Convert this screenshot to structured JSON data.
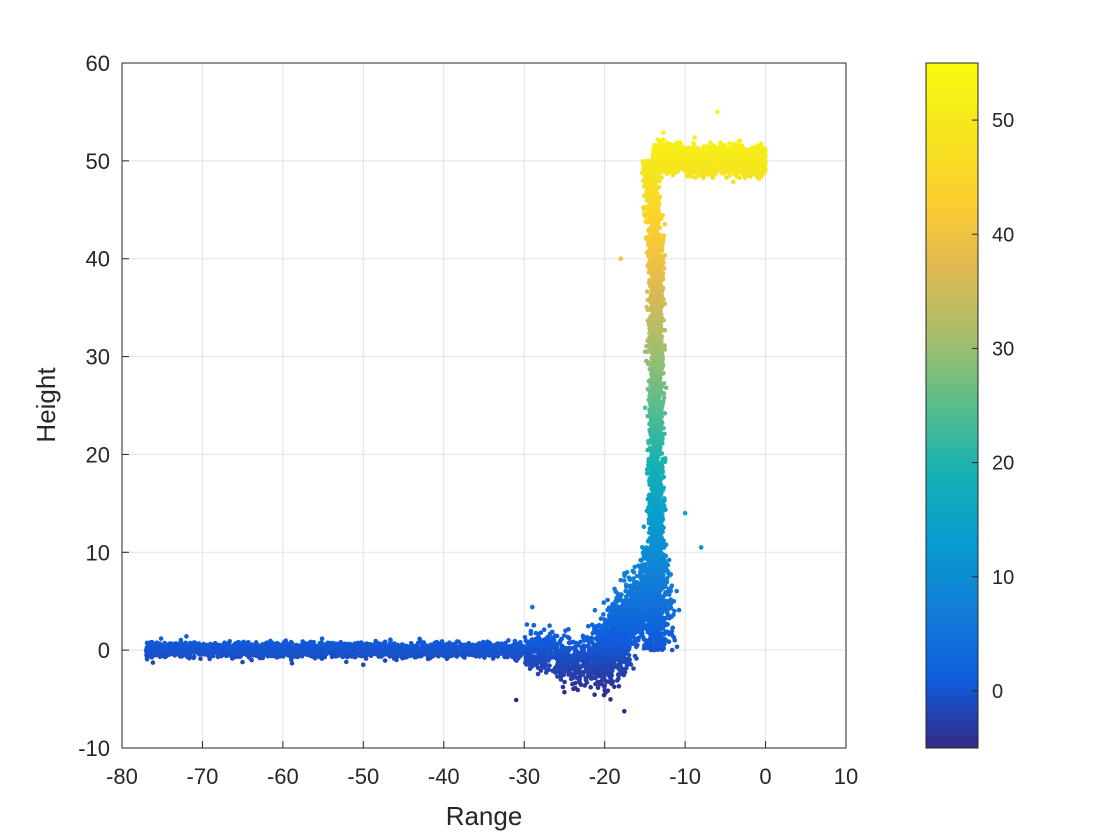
{
  "chart_data": {
    "type": "scatter",
    "xlabel": "Range",
    "ylabel": "Height",
    "xlim": [
      -80,
      10
    ],
    "ylim": [
      -10,
      60
    ],
    "xticks": [
      "-80",
      "-70",
      "-60",
      "-50",
      "-40",
      "-30",
      "-20",
      "-10",
      "0",
      "10"
    ],
    "yticks": [
      "-10",
      "0",
      "10",
      "20",
      "30",
      "40",
      "50",
      "60"
    ],
    "grid": true,
    "color_by": "height",
    "colorbar": {
      "colormap": "parula",
      "range": [
        -5,
        55
      ],
      "ticks": [
        "0",
        "10",
        "20",
        "30",
        "40",
        "50"
      ]
    },
    "point_count_approx": 9000,
    "profile": {
      "ground": {
        "x_range": [
          -77,
          -20
        ],
        "y_center": 0,
        "y_spread": 0.6
      },
      "slope": {
        "x_range": [
          -20,
          -14
        ],
        "y_range": [
          0,
          8
        ]
      },
      "cliff_face": {
        "x_range": [
          -14.5,
          -13
        ],
        "y_range": [
          0,
          50
        ]
      },
      "cliff_top": {
        "x_range": [
          -14,
          0
        ],
        "y_range": [
          49,
          52
        ]
      }
    },
    "sample_points": [
      {
        "x": -77,
        "y": 0
      },
      {
        "x": -72,
        "y": 1.4
      },
      {
        "x": -60,
        "y": 0
      },
      {
        "x": -50,
        "y": -1.5
      },
      {
        "x": -40,
        "y": 0
      },
      {
        "x": -31,
        "y": -5.1
      },
      {
        "x": -29,
        "y": 4.4
      },
      {
        "x": -25,
        "y": -4.3
      },
      {
        "x": -22,
        "y": -2
      },
      {
        "x": -18,
        "y": 0
      },
      {
        "x": -15,
        "y": 5
      },
      {
        "x": -14,
        "y": 10
      },
      {
        "x": -13.5,
        "y": 20
      },
      {
        "x": -13.5,
        "y": 30
      },
      {
        "x": -13.8,
        "y": 40
      },
      {
        "x": -18,
        "y": 40
      },
      {
        "x": -14,
        "y": 45
      },
      {
        "x": -13,
        "y": 50
      },
      {
        "x": -10,
        "y": 51
      },
      {
        "x": -6,
        "y": 55
      },
      {
        "x": -3,
        "y": 50
      },
      {
        "x": 0,
        "y": 50.5
      },
      {
        "x": -8,
        "y": 10.5
      },
      {
        "x": -10,
        "y": 14
      }
    ]
  }
}
